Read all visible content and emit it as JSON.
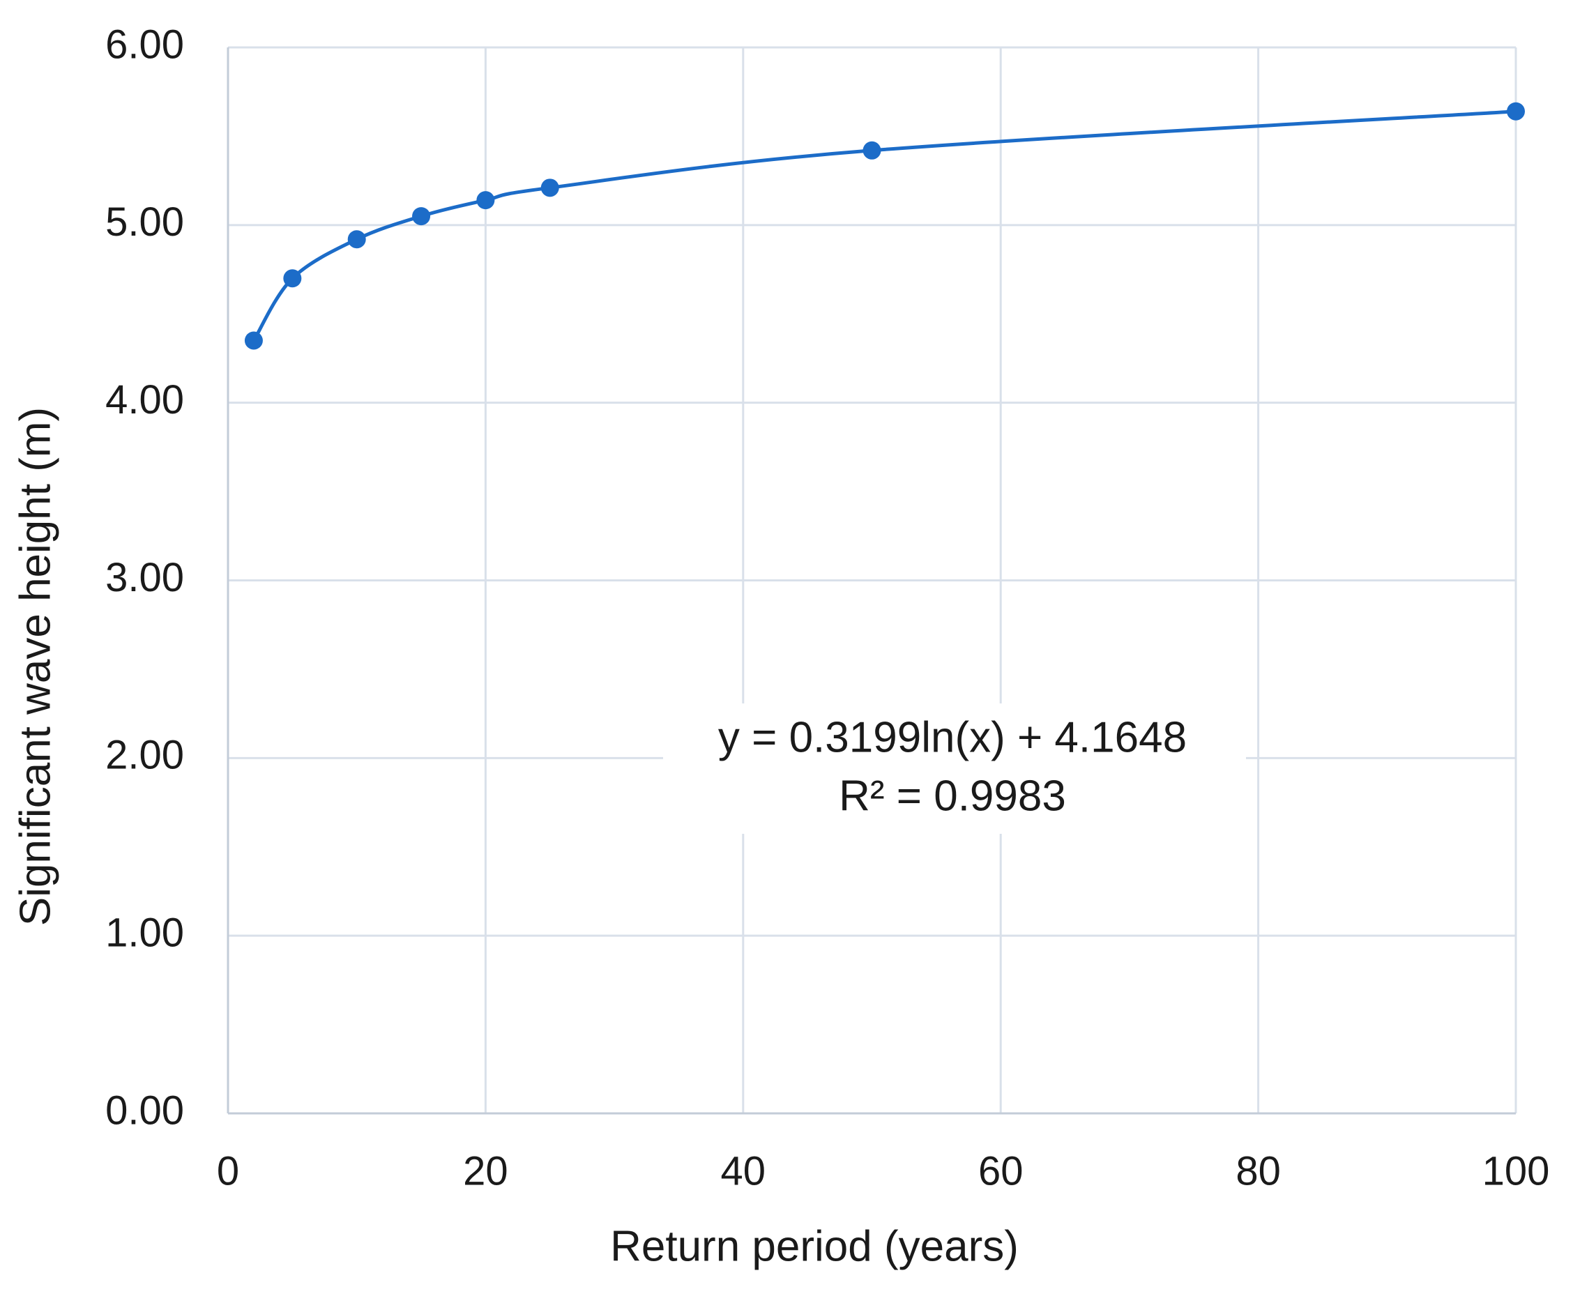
{
  "chart_data": {
    "type": "line",
    "x_label": "Return period (years)",
    "y_label": "Significant wave height (m)",
    "annotations": [
      "y = 0.3199ln(x) + 4.1648",
      "R² = 0.9983"
    ],
    "series": [
      {
        "name": "Significant wave height",
        "color": "#1c6cc8",
        "x": [
          2,
          5,
          10,
          15,
          20,
          25,
          50,
          100
        ],
        "values": [
          4.35,
          4.7,
          4.92,
          5.05,
          5.14,
          5.21,
          5.42,
          5.64
        ]
      }
    ],
    "xlim": [
      0,
      100
    ],
    "xticks": [
      0,
      20,
      40,
      60,
      80,
      100
    ],
    "ylim": [
      0,
      6
    ],
    "yticks": [
      {
        "value": 0,
        "label": "0.00"
      },
      {
        "value": 1,
        "label": "1.00"
      },
      {
        "value": 2,
        "label": "2.00"
      },
      {
        "value": 3,
        "label": "3.00"
      },
      {
        "value": 4,
        "label": "4.00"
      },
      {
        "value": 5,
        "label": "5.00"
      },
      {
        "value": 6,
        "label": "6.00"
      }
    ],
    "grid": true
  }
}
